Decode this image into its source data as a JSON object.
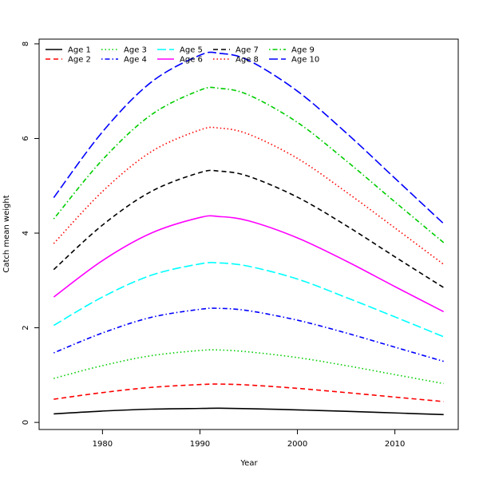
{
  "chart_data": {
    "type": "line",
    "title": "",
    "xlabel": "Year",
    "ylabel": "Catch mean weight",
    "xlim": [
      1973.5,
      2016.5
    ],
    "ylim": [
      -0.15,
      8.1
    ],
    "x_ticks": [
      1980,
      1990,
      2000,
      2010
    ],
    "y_ticks": [
      0,
      2,
      4,
      6,
      8
    ],
    "x": [
      1975,
      1980,
      1985,
      1990,
      1992,
      1995,
      2000,
      2005,
      2010,
      2015
    ],
    "series": [
      {
        "name": "Age 1",
        "color": "#000000",
        "dash": "solid",
        "values": [
          0.18,
          0.24,
          0.28,
          0.295,
          0.3,
          0.29,
          0.265,
          0.235,
          0.2,
          0.165
        ]
      },
      {
        "name": "Age 2",
        "color": "#ff0000",
        "dash": "dashed",
        "values": [
          0.49,
          0.63,
          0.74,
          0.8,
          0.81,
          0.79,
          0.72,
          0.63,
          0.535,
          0.44
        ]
      },
      {
        "name": "Age 3",
        "color": "#00cd00",
        "dash": "dotted",
        "values": [
          0.93,
          1.2,
          1.41,
          1.52,
          1.53,
          1.49,
          1.37,
          1.2,
          1.01,
          0.82
        ]
      },
      {
        "name": "Age 4",
        "color": "#0000ff",
        "dash": "dotdash",
        "values": [
          1.47,
          1.89,
          2.22,
          2.39,
          2.41,
          2.36,
          2.16,
          1.89,
          1.59,
          1.29
        ]
      },
      {
        "name": "Age 5",
        "color": "#00ffff",
        "dash": "longdash",
        "values": [
          2.05,
          2.65,
          3.11,
          3.35,
          3.37,
          3.3,
          3.03,
          2.64,
          2.23,
          1.81
        ]
      },
      {
        "name": "Age 6",
        "color": "#ff00ff",
        "dash": "solid",
        "values": [
          2.65,
          3.42,
          4.0,
          4.33,
          4.35,
          4.26,
          3.9,
          3.41,
          2.87,
          2.34
        ]
      },
      {
        "name": "Age 7",
        "color": "#000000",
        "dash": "dashed",
        "values": [
          3.23,
          4.17,
          4.88,
          5.28,
          5.31,
          5.2,
          4.76,
          4.16,
          3.5,
          2.85
        ]
      },
      {
        "name": "Age 8",
        "color": "#ff0000",
        "dash": "dotted",
        "values": [
          3.78,
          4.88,
          5.72,
          6.18,
          6.22,
          6.09,
          5.58,
          4.87,
          4.11,
          3.34
        ]
      },
      {
        "name": "Age 9",
        "color": "#00cd00",
        "dash": "dotdash",
        "values": [
          4.3,
          5.55,
          6.5,
          7.02,
          7.06,
          6.92,
          6.34,
          5.53,
          4.66,
          3.8
        ]
      },
      {
        "name": "Age 10",
        "color": "#0000ff",
        "dash": "longdash",
        "values": [
          4.75,
          6.14,
          7.19,
          7.76,
          7.8,
          7.65,
          7.0,
          6.12,
          5.16,
          4.2
        ]
      }
    ],
    "legend_position": "top-left"
  }
}
